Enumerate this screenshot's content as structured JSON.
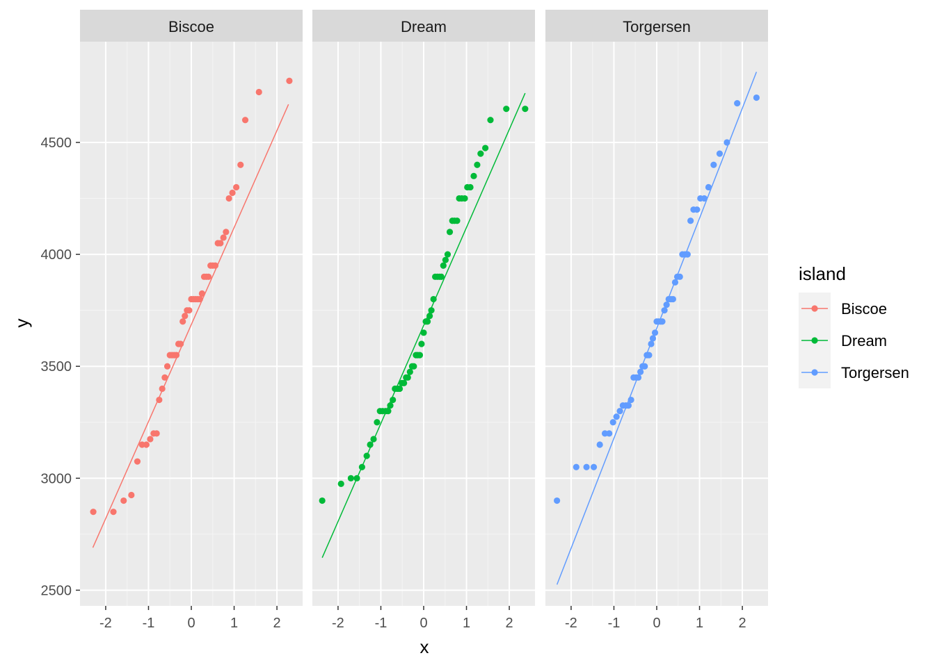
{
  "chart_data": {
    "type": "scatter",
    "xlabel": "x",
    "ylabel": "y",
    "xlim": [
      -2.6,
      2.6
    ],
    "ylim": [
      2430,
      4950
    ],
    "x_ticks": [
      -2,
      -1,
      0,
      1,
      2
    ],
    "x_tick_labels": [
      "-2",
      "-1",
      "0",
      "1",
      "2"
    ],
    "y_ticks": [
      2500,
      3000,
      3500,
      4000,
      4500
    ],
    "y_tick_labels": [
      "2500",
      "3000",
      "3500",
      "4000",
      "4500"
    ],
    "grid": true,
    "legend": {
      "title": "island",
      "placement": "right",
      "entries": [
        "Biscoe",
        "Dream",
        "Torgersen"
      ]
    },
    "panels": [
      {
        "name": "Biscoe",
        "color": "#F8766D",
        "line": {
          "x": [
            -2.3,
            2.27
          ],
          "y": [
            2690,
            4670
          ]
        },
        "points": [
          [
            -2.29,
            2850
          ],
          [
            -1.82,
            2850
          ],
          [
            -1.58,
            2900
          ],
          [
            -1.4,
            2925
          ],
          [
            -1.26,
            3075
          ],
          [
            -1.15,
            3150
          ],
          [
            -1.05,
            3150
          ],
          [
            -0.96,
            3175
          ],
          [
            -0.88,
            3200
          ],
          [
            -0.81,
            3200
          ],
          [
            -0.75,
            3350
          ],
          [
            -0.68,
            3400
          ],
          [
            -0.62,
            3450
          ],
          [
            -0.56,
            3500
          ],
          [
            -0.5,
            3550
          ],
          [
            -0.45,
            3550
          ],
          [
            -0.4,
            3550
          ],
          [
            -0.35,
            3550
          ],
          [
            -0.3,
            3600
          ],
          [
            -0.25,
            3600
          ],
          [
            -0.2,
            3700
          ],
          [
            -0.15,
            3725
          ],
          [
            -0.1,
            3750
          ],
          [
            -0.05,
            3750
          ],
          [
            0.0,
            3800
          ],
          [
            0.05,
            3800
          ],
          [
            0.1,
            3800
          ],
          [
            0.15,
            3800
          ],
          [
            0.2,
            3800
          ],
          [
            0.25,
            3825
          ],
          [
            0.3,
            3900
          ],
          [
            0.35,
            3900
          ],
          [
            0.4,
            3900
          ],
          [
            0.45,
            3950
          ],
          [
            0.5,
            3950
          ],
          [
            0.56,
            3950
          ],
          [
            0.62,
            4050
          ],
          [
            0.68,
            4050
          ],
          [
            0.75,
            4075
          ],
          [
            0.81,
            4100
          ],
          [
            0.88,
            4250
          ],
          [
            0.96,
            4275
          ],
          [
            1.05,
            4300
          ],
          [
            1.15,
            4400
          ],
          [
            1.26,
            4600
          ],
          [
            1.58,
            4725
          ],
          [
            2.29,
            4775
          ]
        ]
      },
      {
        "name": "Dream",
        "color": "#00BA38",
        "line": {
          "x": [
            -2.37,
            2.37
          ],
          "y": [
            2645,
            4720
          ]
        },
        "points": [
          [
            -2.37,
            2900
          ],
          [
            -1.93,
            2975
          ],
          [
            -1.7,
            3000
          ],
          [
            -1.56,
            3000
          ],
          [
            -1.44,
            3050
          ],
          [
            -1.33,
            3100
          ],
          [
            -1.25,
            3150
          ],
          [
            -1.17,
            3175
          ],
          [
            -1.09,
            3250
          ],
          [
            -1.02,
            3300
          ],
          [
            -0.96,
            3300
          ],
          [
            -0.89,
            3300
          ],
          [
            -0.83,
            3300
          ],
          [
            -0.78,
            3325
          ],
          [
            -0.72,
            3350
          ],
          [
            -0.67,
            3400
          ],
          [
            -0.61,
            3400
          ],
          [
            -0.56,
            3400
          ],
          [
            -0.51,
            3425
          ],
          [
            -0.46,
            3425
          ],
          [
            -0.41,
            3450
          ],
          [
            -0.37,
            3450
          ],
          [
            -0.32,
            3475
          ],
          [
            -0.27,
            3500
          ],
          [
            -0.23,
            3500
          ],
          [
            -0.18,
            3550
          ],
          [
            -0.14,
            3550
          ],
          [
            -0.09,
            3550
          ],
          [
            -0.05,
            3600
          ],
          [
            0.0,
            3650
          ],
          [
            0.05,
            3700
          ],
          [
            0.09,
            3700
          ],
          [
            0.14,
            3725
          ],
          [
            0.18,
            3750
          ],
          [
            0.23,
            3800
          ],
          [
            0.27,
            3900
          ],
          [
            0.32,
            3900
          ],
          [
            0.37,
            3900
          ],
          [
            0.41,
            3900
          ],
          [
            0.46,
            3950
          ],
          [
            0.51,
            3975
          ],
          [
            0.56,
            4000
          ],
          [
            0.61,
            4100
          ],
          [
            0.67,
            4150
          ],
          [
            0.72,
            4150
          ],
          [
            0.78,
            4150
          ],
          [
            0.83,
            4250
          ],
          [
            0.89,
            4250
          ],
          [
            0.96,
            4250
          ],
          [
            1.02,
            4300
          ],
          [
            1.09,
            4300
          ],
          [
            1.17,
            4350
          ],
          [
            1.25,
            4400
          ],
          [
            1.33,
            4450
          ],
          [
            1.44,
            4475
          ],
          [
            1.56,
            4600
          ],
          [
            1.93,
            4650
          ],
          [
            2.37,
            4650
          ]
        ]
      },
      {
        "name": "Torgersen",
        "color": "#619CFF",
        "line": {
          "x": [
            -2.33,
            2.33
          ],
          "y": [
            2525,
            4815
          ]
        },
        "points": [
          [
            -2.33,
            2900
          ],
          [
            -1.88,
            3050
          ],
          [
            -1.64,
            3050
          ],
          [
            -1.47,
            3050
          ],
          [
            -1.33,
            3150
          ],
          [
            -1.21,
            3200
          ],
          [
            -1.11,
            3200
          ],
          [
            -1.02,
            3250
          ],
          [
            -0.94,
            3275
          ],
          [
            -0.86,
            3300
          ],
          [
            -0.79,
            3325
          ],
          [
            -0.72,
            3325
          ],
          [
            -0.66,
            3325
          ],
          [
            -0.6,
            3350
          ],
          [
            -0.54,
            3450
          ],
          [
            -0.48,
            3450
          ],
          [
            -0.43,
            3450
          ],
          [
            -0.38,
            3475
          ],
          [
            -0.33,
            3500
          ],
          [
            -0.28,
            3500
          ],
          [
            -0.23,
            3550
          ],
          [
            -0.18,
            3550
          ],
          [
            -0.13,
            3600
          ],
          [
            -0.09,
            3625
          ],
          [
            -0.04,
            3650
          ],
          [
            0.0,
            3700
          ],
          [
            0.04,
            3700
          ],
          [
            0.09,
            3700
          ],
          [
            0.13,
            3700
          ],
          [
            0.18,
            3750
          ],
          [
            0.23,
            3775
          ],
          [
            0.28,
            3800
          ],
          [
            0.33,
            3800
          ],
          [
            0.38,
            3800
          ],
          [
            0.43,
            3875
          ],
          [
            0.48,
            3900
          ],
          [
            0.54,
            3900
          ],
          [
            0.6,
            4000
          ],
          [
            0.66,
            4000
          ],
          [
            0.72,
            4000
          ],
          [
            0.79,
            4150
          ],
          [
            0.86,
            4200
          ],
          [
            0.94,
            4200
          ],
          [
            1.02,
            4250
          ],
          [
            1.11,
            4250
          ],
          [
            1.21,
            4300
          ],
          [
            1.33,
            4400
          ],
          [
            1.47,
            4450
          ],
          [
            1.64,
            4500
          ],
          [
            1.88,
            4675
          ],
          [
            2.33,
            4700
          ]
        ]
      }
    ]
  }
}
